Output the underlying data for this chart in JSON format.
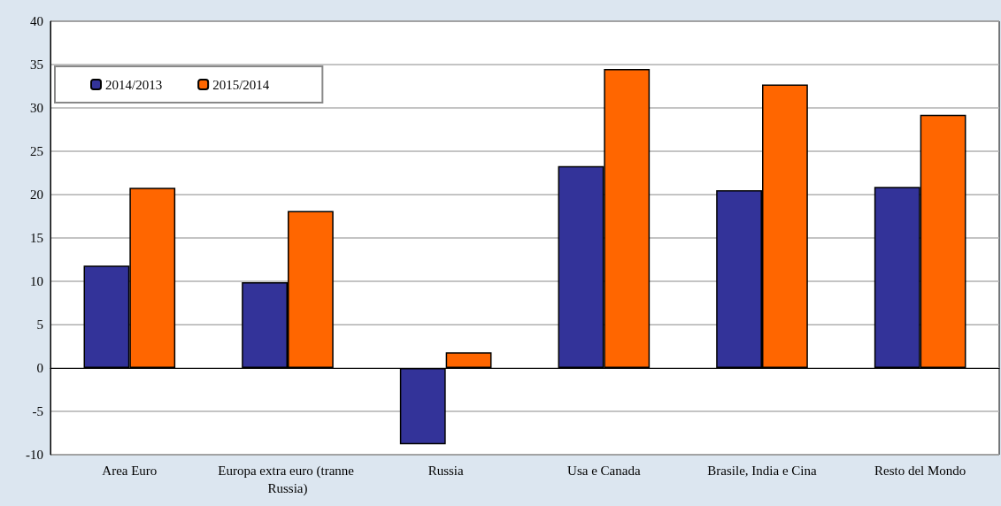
{
  "chart_data": {
    "type": "bar",
    "categories": [
      "Area Euro",
      "Europa extra euro (tranne Russia)",
      "Russia",
      "Usa e Canada",
      "Brasile, India e Cina",
      "Resto del Mondo"
    ],
    "series": [
      {
        "name": "2014/2013",
        "color": "#333399",
        "values": [
          11.8,
          9.9,
          -8.8,
          23.3,
          20.5,
          20.9
        ]
      },
      {
        "name": "2015/2014",
        "color": "#ff6600",
        "values": [
          20.8,
          18.1,
          1.8,
          34.5,
          32.7,
          29.2
        ]
      }
    ],
    "ylim": [
      -10,
      40
    ],
    "yticks": [
      -10,
      -5,
      0,
      5,
      10,
      15,
      20,
      25,
      30,
      35,
      40
    ],
    "grid": "y",
    "legend": "top left"
  }
}
